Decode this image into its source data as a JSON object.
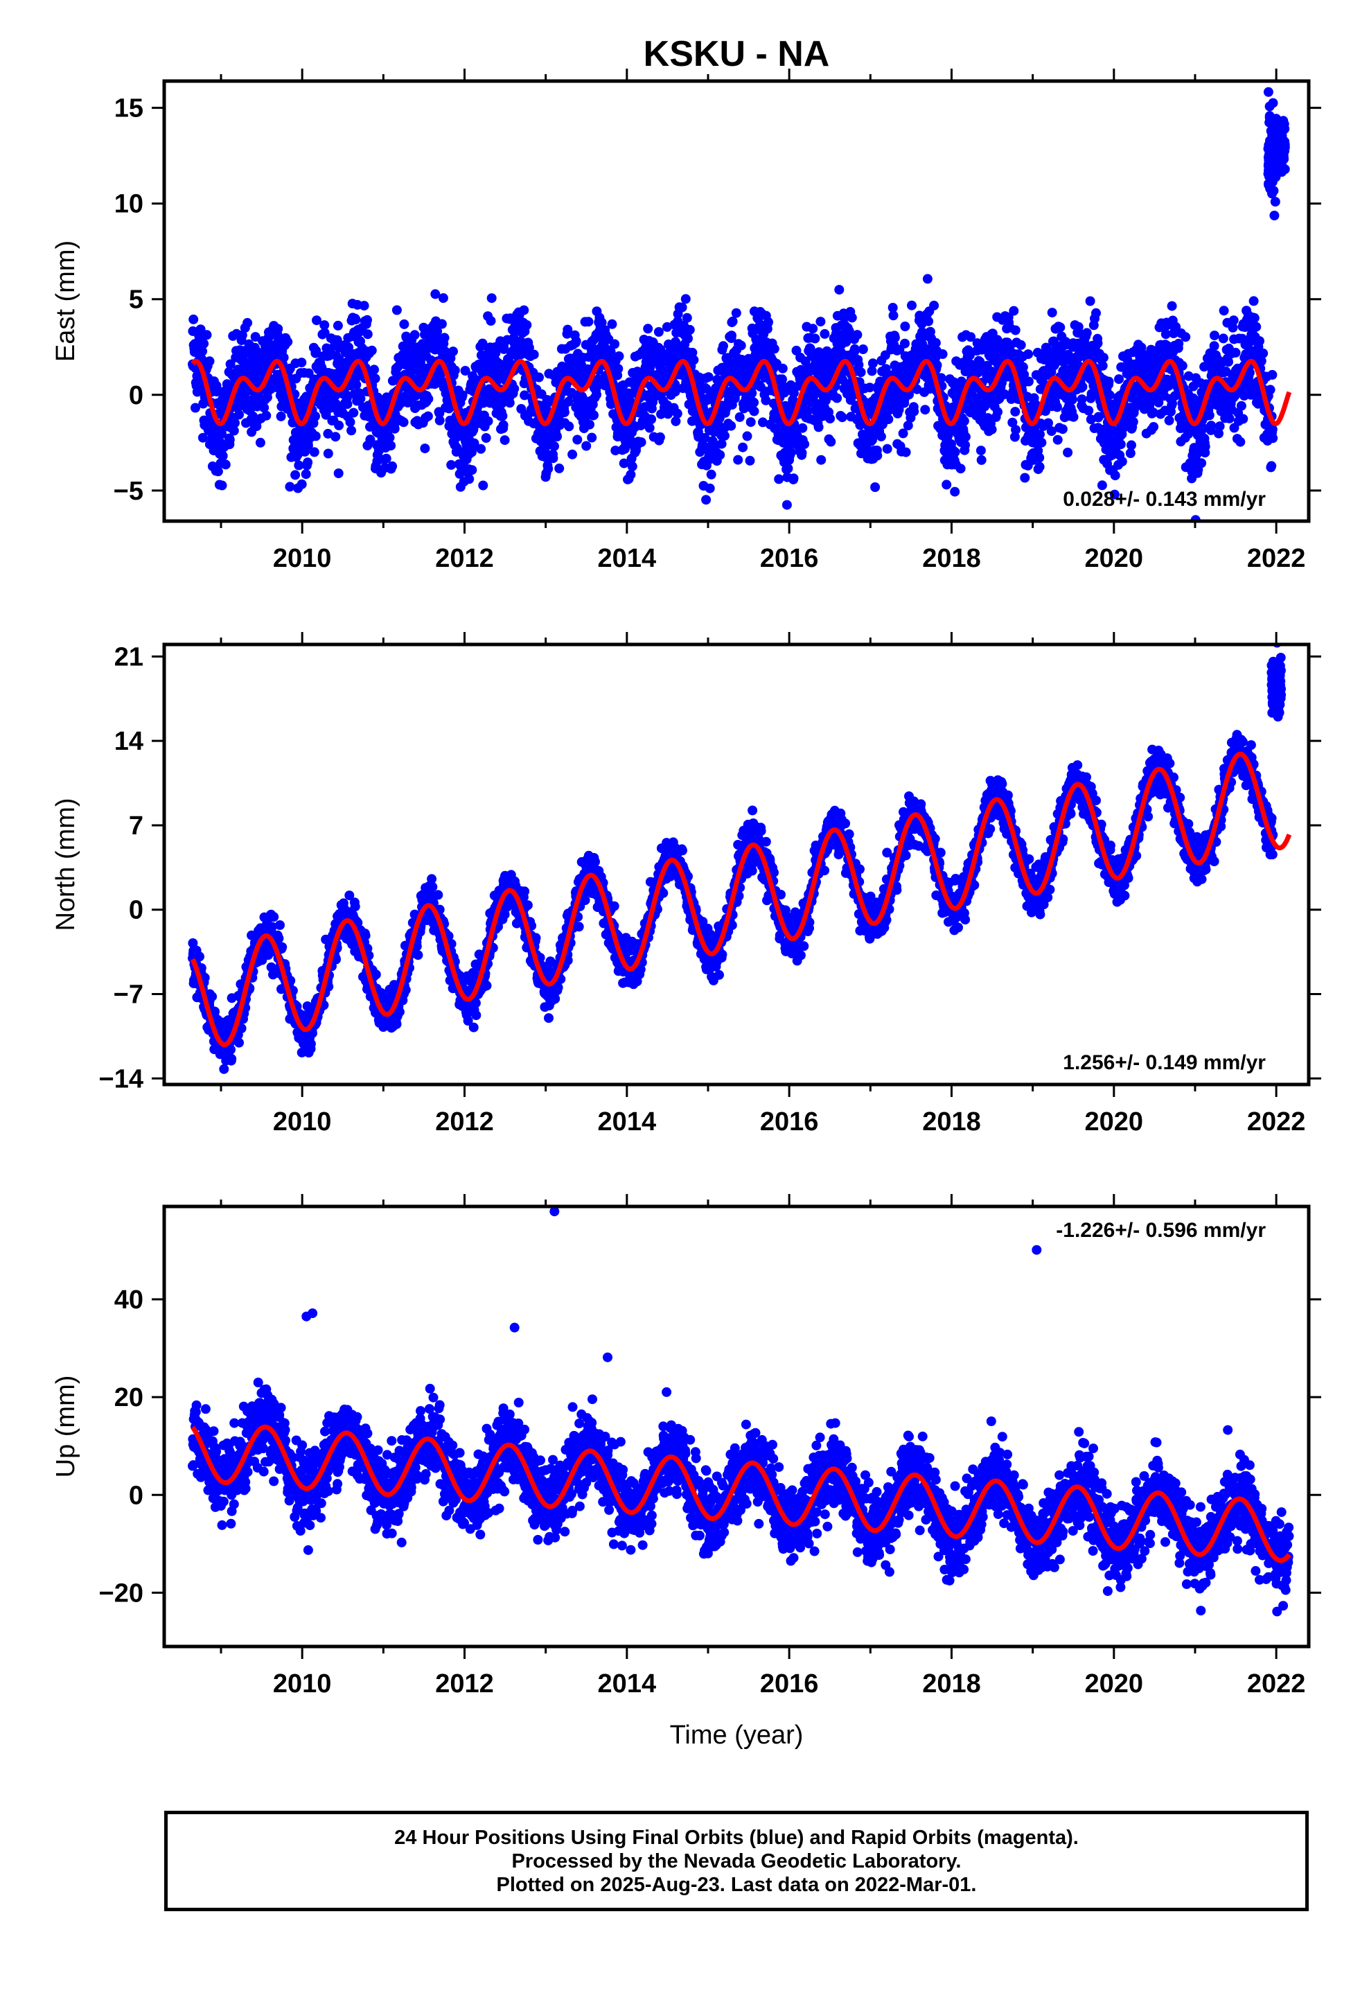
{
  "chart_data": [
    {
      "type": "scatter",
      "title": "KSKU - NA",
      "xlabel": "",
      "ylabel": "East (mm)",
      "xlim": [
        2008.3,
        2022.4
      ],
      "ylim": [
        -6.6,
        16.4
      ],
      "yticks": [
        -5,
        0,
        5,
        10,
        15
      ],
      "xticks": [
        2010,
        2012,
        2014,
        2016,
        2018,
        2020,
        2022
      ],
      "rate_label": "0.028+/- 0.143 mm/yr",
      "rate_position": "bottom-right",
      "series": [
        {
          "kind": "points",
          "color": "#0000ff",
          "start": 2008.65,
          "end": 2022.16,
          "mean": 0.3,
          "amp1": 1.4,
          "amp2": 1.0,
          "noise": 1.35,
          "trend": 0.0,
          "outliers": [
            [
              2021.96,
              12.5,
              1.4,
              70
            ],
            [
              2022.05,
              13.0,
              1.0,
              60
            ]
          ]
        },
        {
          "kind": "model",
          "color": "#ff0000",
          "start": 2008.65,
          "end": 2022.16,
          "mean": 0.3,
          "amp1": 1.0,
          "amp2": 0.9,
          "trend": 0.0
        }
      ]
    },
    {
      "type": "scatter",
      "title": "",
      "xlabel": "",
      "ylabel": "North (mm)",
      "xlim": [
        2008.3,
        2022.4
      ],
      "ylim": [
        -14.5,
        22.0
      ],
      "yticks": [
        -14,
        -7,
        0,
        7,
        14,
        21
      ],
      "xticks": [
        2010,
        2012,
        2014,
        2016,
        2018,
        2020,
        2022
      ],
      "rate_label": "1.256+/- 0.149 mm/yr",
      "rate_position": "bottom-right",
      "series": [
        {
          "kind": "points",
          "color": "#0000ff",
          "start": 2008.65,
          "end": 2022.16,
          "mean": -7.5,
          "amp1": 4.2,
          "amp2": 0.0,
          "noise": 0.9,
          "trend": 1.256,
          "outliers": [
            [
              2022.0,
              18.5,
              1.5,
              80
            ]
          ]
        },
        {
          "kind": "model",
          "color": "#ff0000",
          "start": 2008.65,
          "end": 2022.16,
          "mean": -7.5,
          "amp1": 4.2,
          "amp2": 0.0,
          "trend": 1.256
        }
      ]
    },
    {
      "type": "scatter",
      "title": "",
      "xlabel": "Time (year)",
      "ylabel": "Up (mm)",
      "xlim": [
        2008.3,
        2022.4
      ],
      "ylim": [
        -31,
        59
      ],
      "yticks": [
        -20,
        0,
        20,
        40
      ],
      "xticks": [
        2010,
        2012,
        2014,
        2016,
        2018,
        2020,
        2022
      ],
      "rate_label": "-1.226+/- 0.596 mm/yr",
      "rate_position": "top-right",
      "series": [
        {
          "kind": "points",
          "color": "#0000ff",
          "start": 2008.65,
          "end": 2022.16,
          "mean": 9.0,
          "amp1": 6.0,
          "amp2": 0.0,
          "noise": 3.8,
          "trend": -1.226,
          "outliers": [
            [
              2010.1,
              37,
              0.5,
              2
            ],
            [
              2013.15,
              58,
              0.2,
              1
            ],
            [
              2019.0,
              50,
              0.2,
              1
            ],
            [
              2012.6,
              34,
              0.5,
              1
            ],
            [
              2013.8,
              28,
              0.5,
              1
            ]
          ]
        },
        {
          "kind": "model",
          "color": "#ff0000",
          "start": 2008.65,
          "end": 2022.16,
          "mean": 9.0,
          "amp1": 6.0,
          "amp2": 0.0,
          "trend": -1.226
        }
      ]
    }
  ],
  "footer": {
    "line1": "24 Hour Positions Using Final Orbits (blue) and Rapid Orbits (magenta).",
    "line2": "Processed by the Nevada Geodetic Laboratory.",
    "line3": "Plotted on 2025-Aug-23. Last data on 2022-Mar-01."
  }
}
